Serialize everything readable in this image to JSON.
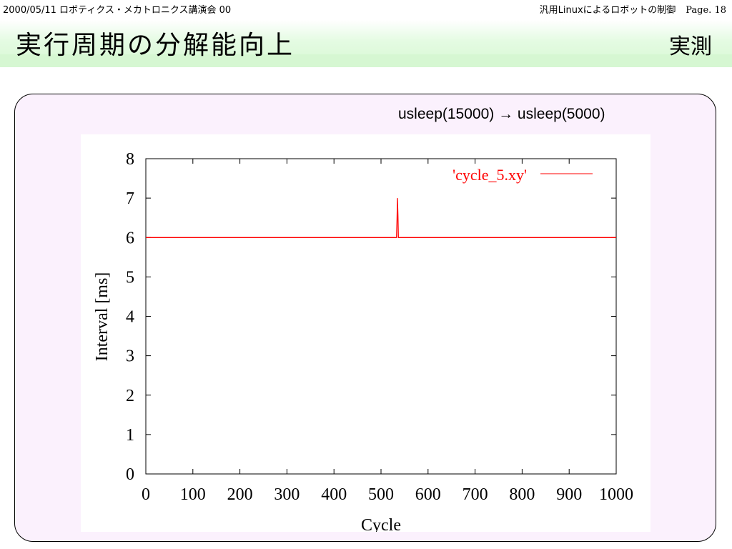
{
  "header": {
    "left": "2000/05/11 ロボティクス・メカトロニクス講演会 00",
    "right": "汎用Linuxによるロボットの制御",
    "page": "Page. 18"
  },
  "slide": {
    "title": "実行周期の分解能向上",
    "tag": "実測",
    "caption": "usleep(15000) → usleep(5000)"
  },
  "colors": {
    "series": "#ff0000",
    "title_band": "#d8f8d4",
    "panel": "#fbf1fd"
  },
  "chart_data": {
    "type": "line",
    "xlabel": "Cycle",
    "ylabel": "Interval [ms]",
    "xlim": [
      0,
      1000
    ],
    "ylim": [
      0,
      8
    ],
    "xticks": [
      0,
      100,
      200,
      300,
      400,
      500,
      600,
      700,
      800,
      900,
      1000
    ],
    "yticks": [
      0,
      1,
      2,
      3,
      4,
      5,
      6,
      7,
      8
    ],
    "grid": false,
    "legend_position": "top-right",
    "series": [
      {
        "name": "'cycle_5.xy'",
        "color": "#ff0000",
        "x": [
          0,
          533,
          534,
          535,
          536,
          537,
          1000
        ],
        "y": [
          6.0,
          6.0,
          6.45,
          7.0,
          6.55,
          6.0,
          6.0
        ]
      }
    ]
  }
}
